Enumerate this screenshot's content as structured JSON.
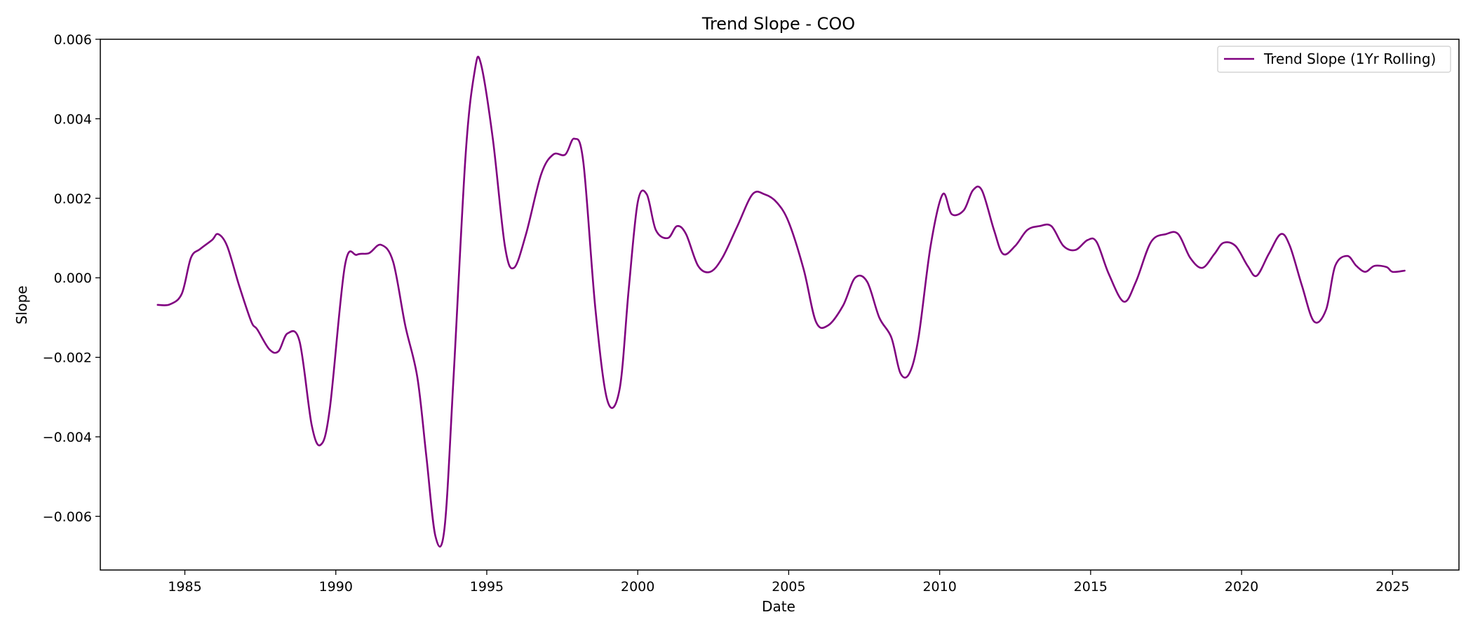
{
  "chart_data": {
    "type": "line",
    "title": "Trend Slope - COO",
    "xlabel": "Date",
    "ylabel": "Slope",
    "xlim": [
      1982.2,
      2027.2
    ],
    "ylim": [
      -0.00735,
      0.006
    ],
    "xticks": [
      1985,
      1990,
      1995,
      2000,
      2005,
      2010,
      2015,
      2020,
      2025
    ],
    "xtick_labels": [
      "1985",
      "1990",
      "1995",
      "2000",
      "2005",
      "2010",
      "2015",
      "2020",
      "2025"
    ],
    "yticks": [
      -0.006,
      -0.004,
      -0.002,
      0.0,
      0.002,
      0.004,
      0.006
    ],
    "ytick_labels": [
      "−0.006",
      "−0.004",
      "−0.002",
      "0.000",
      "0.002",
      "0.004",
      "0.006"
    ],
    "grid": false,
    "legend_position": "top-right",
    "series": [
      {
        "name": "Trend Slope (1Yr Rolling)",
        "color": "#800080",
        "x": [
          1984.1,
          1984.5,
          1984.9,
          1985.2,
          1985.5,
          1985.9,
          1986.1,
          1986.4,
          1986.8,
          1987.2,
          1987.4,
          1987.8,
          1988.1,
          1988.4,
          1988.8,
          1989.2,
          1989.5,
          1989.8,
          1990.3,
          1990.7,
          1991.1,
          1991.5,
          1991.9,
          1992.3,
          1992.7,
          1993.0,
          1993.3,
          1993.6,
          1993.9,
          1994.3,
          1994.6,
          1994.8,
          1995.2,
          1995.6,
          1995.9,
          1996.3,
          1996.8,
          1997.2,
          1997.6,
          1997.9,
          1998.2,
          1998.6,
          1999.0,
          1999.4,
          1999.7,
          2000.0,
          2000.3,
          2000.6,
          2001.0,
          2001.3,
          2001.6,
          2002.0,
          2002.4,
          2002.8,
          2003.3,
          2003.8,
          2004.2,
          2004.6,
          2005.0,
          2005.5,
          2005.9,
          2006.3,
          2006.8,
          2007.2,
          2007.6,
          2008.0,
          2008.4,
          2008.7,
          2009.0,
          2009.3,
          2009.7,
          2010.1,
          2010.4,
          2010.8,
          2011.1,
          2011.4,
          2011.8,
          2012.1,
          2012.5,
          2012.9,
          2013.3,
          2013.7,
          2014.1,
          2014.5,
          2014.9,
          2015.2,
          2015.6,
          2016.1,
          2016.5,
          2017.0,
          2017.5,
          2017.9,
          2018.3,
          2018.7,
          2019.1,
          2019.4,
          2019.8,
          2020.2,
          2020.5,
          2020.9,
          2021.3,
          2021.6,
          2022.0,
          2022.4,
          2022.8,
          2023.1,
          2023.5,
          2023.8,
          2024.1,
          2024.4,
          2024.8,
          2025.0,
          2025.4
        ],
        "y": [
          -0.00068,
          -0.00067,
          -0.0004,
          0.0005,
          0.00072,
          0.00095,
          0.0011,
          0.0008,
          -0.0002,
          -0.0011,
          -0.0013,
          -0.0018,
          -0.00185,
          -0.0014,
          -0.0016,
          -0.0037,
          -0.0042,
          -0.0033,
          0.0003,
          0.00058,
          0.00062,
          0.00083,
          0.0004,
          -0.0012,
          -0.0025,
          -0.0045,
          -0.0065,
          -0.0063,
          -0.0025,
          0.0031,
          0.0052,
          0.0054,
          0.0035,
          0.0008,
          0.00025,
          0.0011,
          0.0026,
          0.0031,
          0.0031,
          0.0035,
          0.0029,
          -0.0008,
          -0.0031,
          -0.0028,
          -0.0003,
          0.0019,
          0.0021,
          0.0012,
          0.001,
          0.0013,
          0.0011,
          0.0003,
          0.00015,
          0.0005,
          0.0013,
          0.0021,
          0.0021,
          0.0019,
          0.0014,
          0.0002,
          -0.0011,
          -0.0012,
          -0.0007,
          0.0,
          -0.0001,
          -0.001,
          -0.0015,
          -0.0024,
          -0.0024,
          -0.0015,
          0.0008,
          0.0021,
          0.0016,
          0.0017,
          0.0022,
          0.0022,
          0.0012,
          0.0006,
          0.0008,
          0.0012,
          0.0013,
          0.0013,
          0.0008,
          0.0007,
          0.00095,
          0.0009,
          0.0001,
          -0.0006,
          -0.0001,
          0.0009,
          0.0011,
          0.0011,
          0.0005,
          0.00025,
          0.0006,
          0.00088,
          0.0008,
          0.0003,
          5e-05,
          0.0006,
          0.0011,
          0.0008,
          -0.0002,
          -0.0011,
          -0.0008,
          0.0003,
          0.00055,
          0.0003,
          0.00015,
          0.0003,
          0.00027,
          0.00015,
          0.00018
        ]
      }
    ]
  }
}
